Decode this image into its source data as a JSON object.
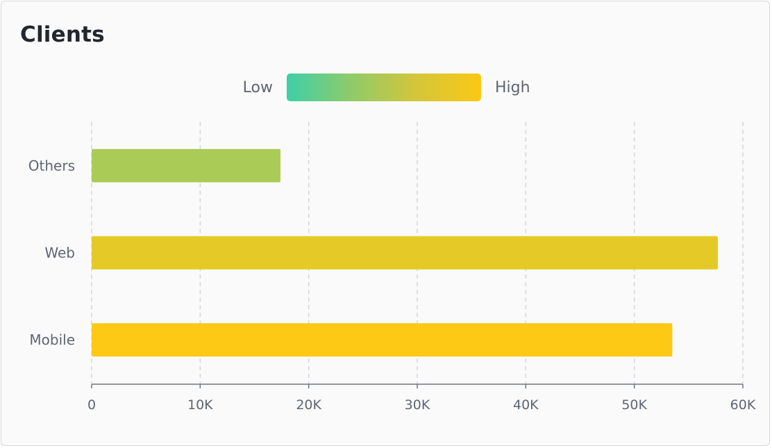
{
  "title": "Clients",
  "legend": {
    "low_label": "Low",
    "high_label": "High",
    "gradient_colors": [
      "#3ecfa8",
      "#8fcb6a",
      "#d4c63a",
      "#fbc815"
    ]
  },
  "colors": {
    "grid": "#d2d5dc",
    "axis": "#6e7480",
    "bar_low": "#abcb57",
    "bar_mid": "#e5ca27",
    "bar_high": "#fec915"
  },
  "chart_data": {
    "type": "bar",
    "orientation": "horizontal",
    "title": "Clients",
    "categories": [
      "Others",
      "Web",
      "Mobile"
    ],
    "values": [
      17400,
      57700,
      53500
    ],
    "bar_colors": [
      "#abcb57",
      "#e5ca27",
      "#fec915"
    ],
    "xlim": [
      0,
      60000
    ],
    "x_ticks": [
      0,
      10000,
      20000,
      30000,
      40000,
      50000,
      60000
    ],
    "x_tick_labels": [
      "0",
      "10K",
      "20K",
      "30K",
      "40K",
      "50K",
      "60K"
    ],
    "xlabel": "",
    "ylabel": "",
    "grid": true,
    "legend": "top-center"
  }
}
